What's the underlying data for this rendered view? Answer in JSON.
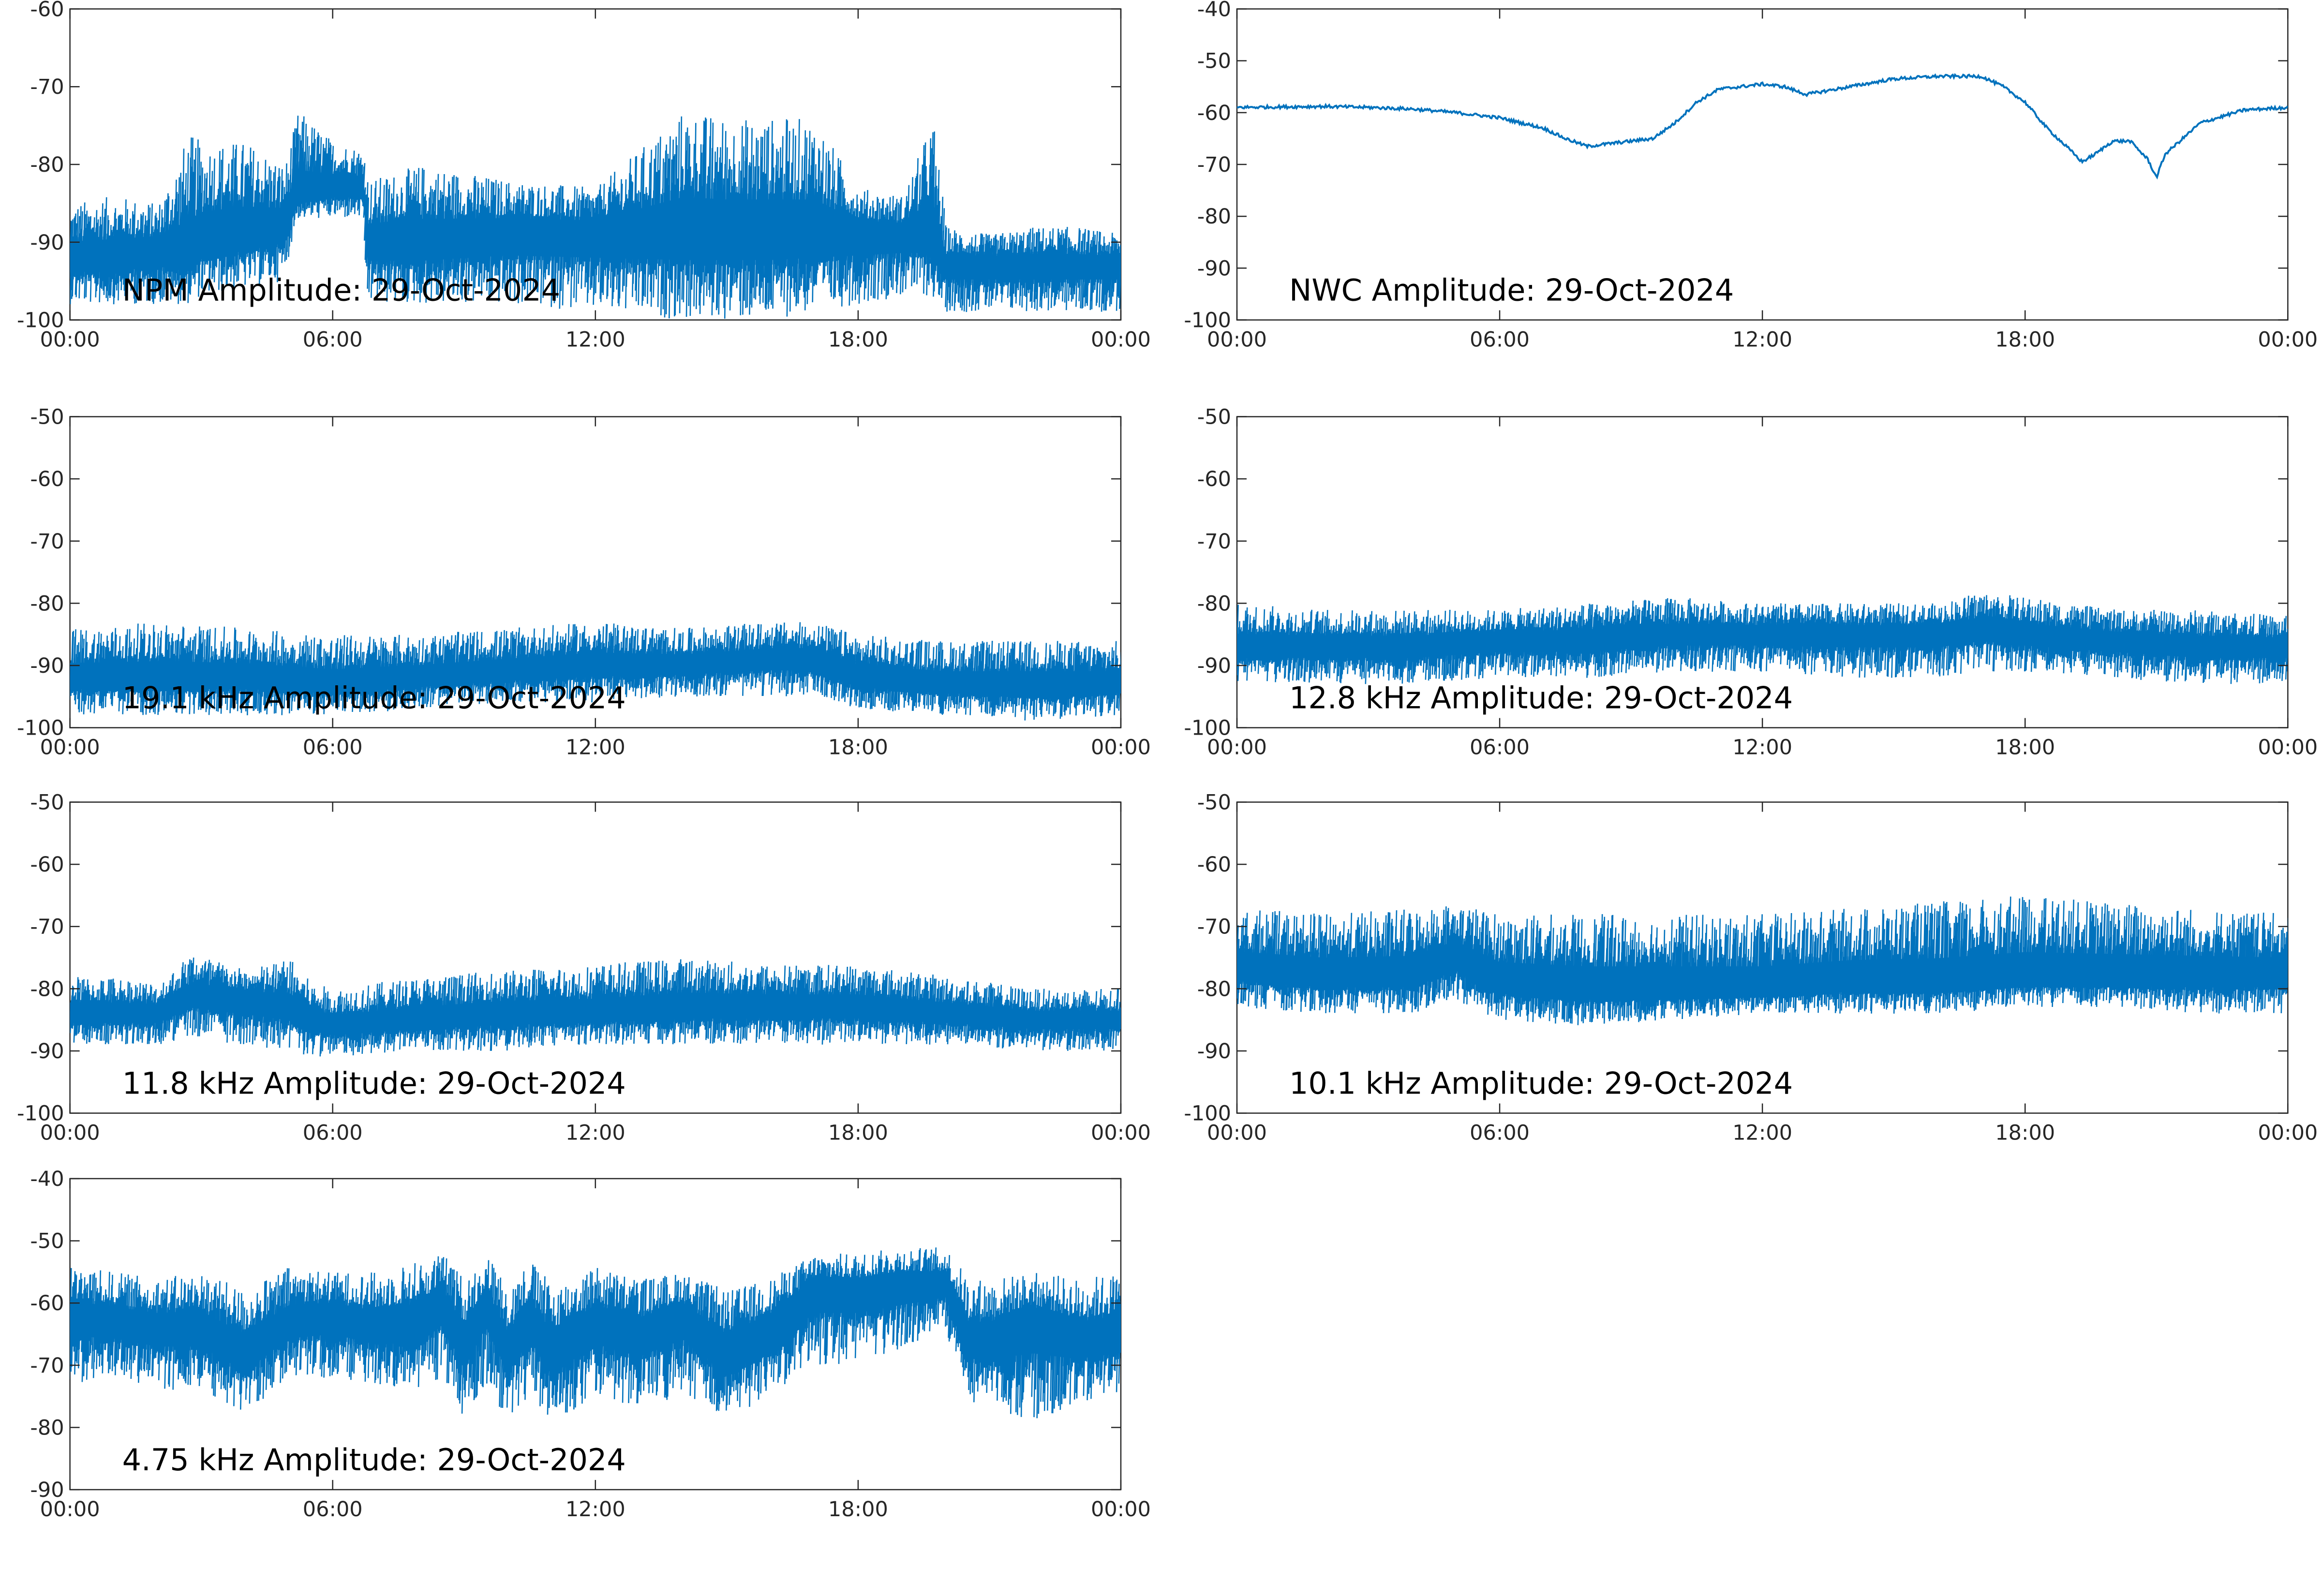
{
  "figure": {
    "date": "29-Oct-2024",
    "line_color": "#0072BD",
    "axis_color": "#262626",
    "background": "#ffffff"
  },
  "chart_data": [
    {
      "type": "line",
      "title": "NPM Amplitude: 29-Oct-2024",
      "xlabel": "",
      "ylabel": "",
      "x_ticks": [
        "00:00",
        "06:00",
        "12:00",
        "18:00",
        "00:00"
      ],
      "xlim_hours": [
        0,
        24
      ],
      "ylim": [
        -100,
        -60
      ],
      "y_ticks": [
        -100,
        -90,
        -80,
        -70,
        -60
      ],
      "grid": false,
      "series": [
        {
          "color": "#0072BD",
          "x_hours": [
            0,
            1,
            2,
            2.7,
            3,
            4,
            4.9,
            5.2,
            6,
            6.7,
            6.8,
            8,
            10,
            12,
            14,
            15,
            16,
            17,
            18,
            19,
            19.7,
            20,
            21,
            22,
            23,
            24
          ],
          "mean": [
            -92,
            -92,
            -91,
            -92,
            -90,
            -89,
            -88,
            -84,
            -83,
            -83,
            -90,
            -90,
            -89,
            -89,
            -89,
            -89,
            -89,
            -89,
            -89,
            -89,
            -89,
            -93,
            -93,
            -93,
            -93,
            -93
          ],
          "min": [
            -98,
            -98,
            -98,
            -98,
            -97,
            -96,
            -95,
            -87,
            -87,
            -87,
            -98,
            -98,
            -98,
            -99,
            -100,
            -100,
            -100,
            -99,
            -98,
            -97,
            -97,
            -99,
            -99,
            -99,
            -99,
            -99
          ],
          "max": [
            -85,
            -84,
            -85,
            -76,
            -77,
            -77,
            -80,
            -73,
            -77,
            -78,
            -82,
            -80,
            -82,
            -83,
            -73,
            -74,
            -74,
            -74,
            -83,
            -84,
            -74,
            -88,
            -89,
            -88,
            -88,
            -89
          ]
        }
      ]
    },
    {
      "type": "line",
      "title": "NWC Amplitude: 29-Oct-2024",
      "xlabel": "",
      "ylabel": "",
      "x_ticks": [
        "00:00",
        "06:00",
        "12:00",
        "18:00",
        "00:00"
      ],
      "xlim_hours": [
        0,
        24
      ],
      "ylim": [
        -100,
        -40
      ],
      "y_ticks": [
        -100,
        -90,
        -80,
        -70,
        -60,
        -50,
        -40
      ],
      "grid": false,
      "series": [
        {
          "color": "#0072BD",
          "x_hours": [
            0,
            2,
            3,
            4,
            5,
            6,
            7,
            7.5,
            8,
            8.5,
            9,
            9.5,
            10,
            10.5,
            11,
            12,
            12.5,
            13,
            14,
            15,
            16,
            17,
            17.5,
            18,
            18.5,
            19,
            19.3,
            19.6,
            20,
            20.4,
            20.8,
            21,
            21.2,
            22,
            23,
            24
          ],
          "mean": [
            -59,
            -58.8,
            -59,
            -59.3,
            -60,
            -61,
            -63,
            -65,
            -66.5,
            -66,
            -65.5,
            -65,
            -62,
            -58,
            -55.5,
            -54.5,
            -55,
            -56.5,
            -55,
            -53.5,
            -53,
            -53,
            -55,
            -58,
            -63,
            -67,
            -69.5,
            -68,
            -65.5,
            -65.5,
            -69,
            -72.5,
            -68,
            -62,
            -59.5,
            -59
          ],
          "min": [],
          "max": []
        }
      ]
    },
    {
      "type": "line",
      "title": "19.1 kHz Amplitude: 29-Oct-2024",
      "xlabel": "",
      "ylabel": "",
      "x_ticks": [
        "00:00",
        "06:00",
        "12:00",
        "18:00",
        "00:00"
      ],
      "xlim_hours": [
        0,
        24
      ],
      "ylim": [
        -100,
        -50
      ],
      "y_ticks": [
        -100,
        -90,
        -80,
        -70,
        -60,
        -50
      ],
      "grid": false,
      "series": [
        {
          "color": "#0072BD",
          "x_hours": [
            0,
            2,
            4,
            6,
            8,
            10,
            12,
            14,
            16,
            17,
            18,
            20,
            22,
            24
          ],
          "mean": [
            -92,
            -92,
            -92,
            -93,
            -92,
            -91,
            -90,
            -90,
            -89,
            -89,
            -92,
            -93,
            -93,
            -93
          ],
          "min": [
            -98,
            -98,
            -98,
            -98,
            -97,
            -96,
            -96,
            -95,
            -95,
            -95,
            -97,
            -98,
            -99,
            -98
          ],
          "max": [
            -84,
            -83,
            -84,
            -85,
            -85,
            -84,
            -83,
            -84,
            -83,
            -83,
            -85,
            -86,
            -86,
            -86
          ]
        }
      ]
    },
    {
      "type": "line",
      "title": "12.8 kHz Amplitude: 29-Oct-2024",
      "xlabel": "",
      "ylabel": "",
      "x_ticks": [
        "00:00",
        "06:00",
        "12:00",
        "18:00",
        "00:00"
      ],
      "xlim_hours": [
        0,
        24
      ],
      "ylim": [
        -100,
        -50
      ],
      "y_ticks": [
        -100,
        -90,
        -80,
        -70,
        -60,
        -50
      ],
      "grid": false,
      "series": [
        {
          "color": "#0072BD",
          "x_hours": [
            0,
            2,
            4,
            6,
            8,
            10,
            12,
            14,
            16,
            17,
            18,
            20,
            22,
            24
          ],
          "mean": [
            -87,
            -87,
            -87,
            -86,
            -86,
            -85,
            -85,
            -85,
            -85,
            -84,
            -85,
            -86,
            -87,
            -87
          ],
          "min": [
            -93,
            -93,
            -93,
            -92,
            -92,
            -91,
            -91,
            -92,
            -92,
            -91,
            -91,
            -92,
            -93,
            -93
          ],
          "max": [
            -80,
            -81,
            -81,
            -81,
            -80,
            -79,
            -80,
            -80,
            -80,
            -78,
            -79,
            -81,
            -81,
            -82
          ]
        }
      ]
    },
    {
      "type": "line",
      "title": "11.8 kHz Amplitude: 29-Oct-2024",
      "xlabel": "",
      "ylabel": "",
      "x_ticks": [
        "00:00",
        "06:00",
        "12:00",
        "18:00",
        "00:00"
      ],
      "xlim_hours": [
        0,
        24
      ],
      "ylim": [
        -100,
        -50
      ],
      "y_ticks": [
        -100,
        -90,
        -80,
        -70,
        -60,
        -50
      ],
      "grid": false,
      "series": [
        {
          "color": "#0072BD",
          "x_hours": [
            0,
            1,
            2,
            2.8,
            4,
            5,
            5.5,
            6,
            8,
            10,
            12,
            14,
            16,
            18,
            20,
            22,
            24
          ],
          "mean": [
            -84,
            -84,
            -84,
            -81,
            -82,
            -83,
            -85,
            -86,
            -85,
            -84,
            -84,
            -83,
            -83,
            -83,
            -84,
            -85,
            -85
          ],
          "min": [
            -89,
            -89,
            -89,
            -88,
            -89,
            -90,
            -91,
            -91,
            -90,
            -90,
            -89,
            -89,
            -89,
            -89,
            -89,
            -90,
            -90
          ],
          "max": [
            -78,
            -78,
            -79,
            -74,
            -77,
            -75,
            -79,
            -80,
            -78,
            -77,
            -76,
            -75,
            -76,
            -76,
            -78,
            -80,
            -80
          ]
        }
      ]
    },
    {
      "type": "line",
      "title": "10.1 kHz Amplitude: 29-Oct-2024",
      "xlabel": "",
      "ylabel": "",
      "x_ticks": [
        "00:00",
        "06:00",
        "12:00",
        "18:00",
        "00:00"
      ],
      "xlim_hours": [
        0,
        24
      ],
      "ylim": [
        -100,
        -50
      ],
      "y_ticks": [
        -100,
        -90,
        -80,
        -70,
        -60,
        -50
      ],
      "grid": false,
      "series": [
        {
          "color": "#0072BD",
          "x_hours": [
            0,
            2,
            4,
            5,
            6,
            8,
            10,
            12,
            14,
            16,
            18,
            20,
            22,
            24
          ],
          "mean": [
            -77,
            -78,
            -78,
            -75,
            -79,
            -80,
            -80,
            -80,
            -79,
            -79,
            -78,
            -78,
            -78,
            -78
          ],
          "min": [
            -83,
            -84,
            -84,
            -82,
            -85,
            -86,
            -85,
            -84,
            -84,
            -84,
            -83,
            -83,
            -84,
            -84
          ],
          "max": [
            -67,
            -68,
            -67,
            -66,
            -68,
            -68,
            -68,
            -68,
            -67,
            -66,
            -65,
            -66,
            -67,
            -68
          ]
        }
      ]
    },
    {
      "type": "line",
      "title": "4.75 kHz Amplitude: 29-Oct-2024",
      "xlabel": "",
      "ylabel": "",
      "x_ticks": [
        "00:00",
        "06:00",
        "12:00",
        "18:00",
        "00:00"
      ],
      "xlim_hours": [
        0,
        24
      ],
      "ylim": [
        -90,
        -40
      ],
      "y_ticks": [
        -90,
        -80,
        -70,
        -60,
        -50,
        -40
      ],
      "grid": false,
      "series": [
        {
          "color": "#0072BD",
          "x_hours": [
            0,
            1,
            2,
            3,
            4,
            5,
            6,
            7,
            8,
            8.5,
            9,
            9.5,
            10,
            10.5,
            11,
            12,
            13,
            14,
            15,
            16,
            17,
            18,
            19,
            20,
            20.5,
            21,
            22,
            23,
            24
          ],
          "mean": [
            -62,
            -63,
            -64,
            -64,
            -68,
            -63,
            -62,
            -64,
            -63,
            -60,
            -67,
            -60,
            -68,
            -62,
            -68,
            -63,
            -65,
            -62,
            -68,
            -64,
            -58,
            -58,
            -57,
            -57,
            -66,
            -66,
            -63,
            -66,
            -65
          ],
          "min": [
            -73,
            -72,
            -74,
            -74,
            -78,
            -72,
            -72,
            -73,
            -74,
            -72,
            -79,
            -73,
            -79,
            -75,
            -80,
            -75,
            -77,
            -75,
            -79,
            -75,
            -70,
            -70,
            -68,
            -64,
            -76,
            -76,
            -80,
            -76,
            -75
          ],
          "max": [
            -54,
            -55,
            -56,
            -55,
            -58,
            -54,
            -55,
            -55,
            -53,
            -52,
            -56,
            -52,
            -57,
            -53,
            -57,
            -54,
            -56,
            -55,
            -58,
            -56,
            -52,
            -52,
            -51,
            -51,
            -56,
            -56,
            -55,
            -56,
            -55
          ]
        }
      ]
    }
  ]
}
